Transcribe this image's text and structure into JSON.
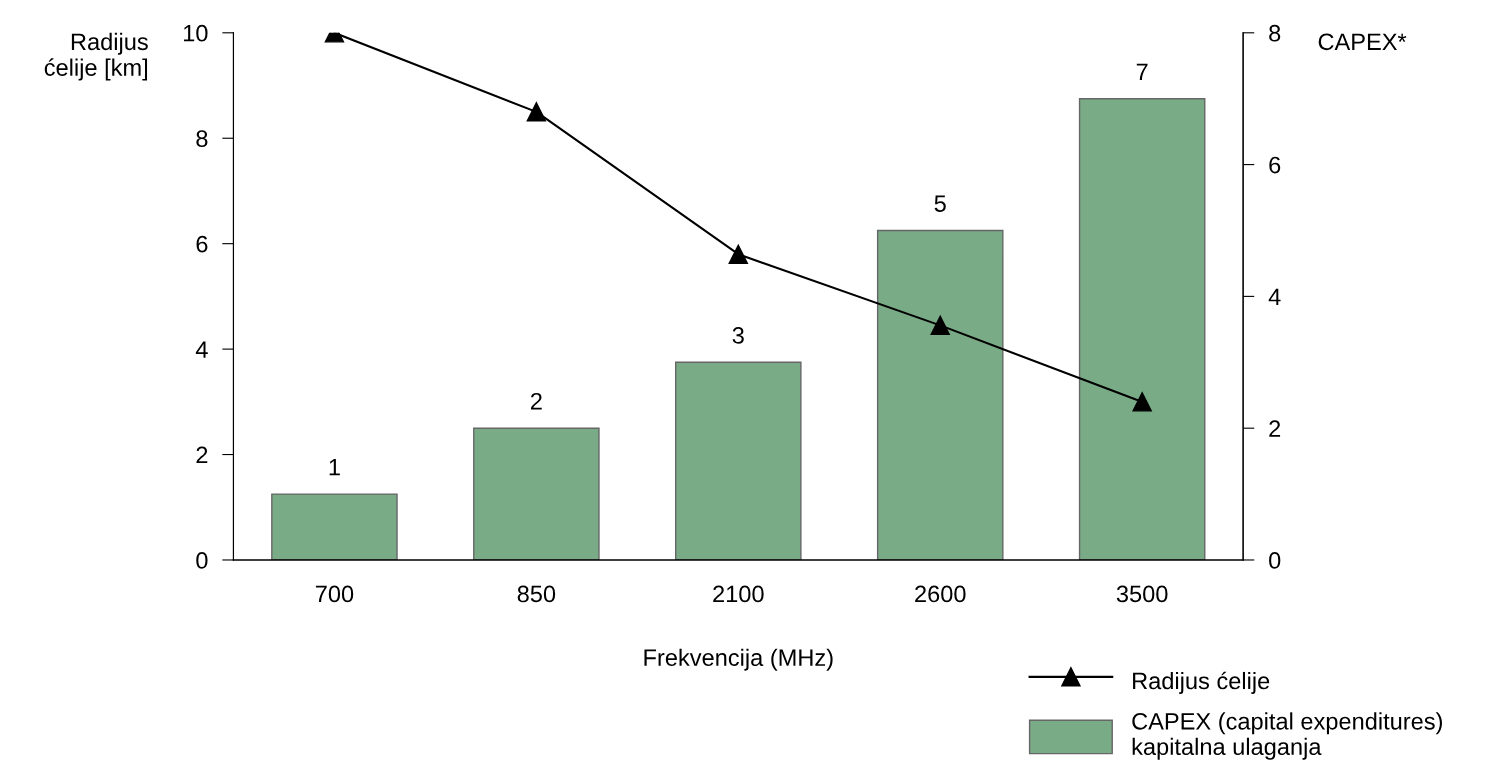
{
  "chart_data": {
    "type": "bar",
    "categories": [
      "700",
      "850",
      "2100",
      "2600",
      "3500"
    ],
    "xlabel": "Frekvencija (MHz)",
    "ylabel": "Radijus\nćelije [km]",
    "y2label": "CAPEX*",
    "ylim": [
      0,
      10
    ],
    "yticks": [
      0,
      2,
      4,
      6,
      8,
      10
    ],
    "y2lim": [
      0,
      8
    ],
    "y2ticks": [
      0,
      2,
      4,
      6,
      8
    ],
    "legend": "bottom right",
    "grid": false,
    "series": [
      {
        "name": "Radijus ćelije",
        "type": "line",
        "color": "#000000",
        "marker": "triangle",
        "values": [
          10,
          8.5,
          5.8,
          4.45,
          3.0
        ]
      },
      {
        "name": "CAPEX (capital expenditures)\nkapitalna ulaganja",
        "axis": "y2",
        "color": "#7aab87",
        "data_labels": true,
        "values": [
          1,
          2,
          3,
          5,
          7
        ]
      }
    ]
  }
}
